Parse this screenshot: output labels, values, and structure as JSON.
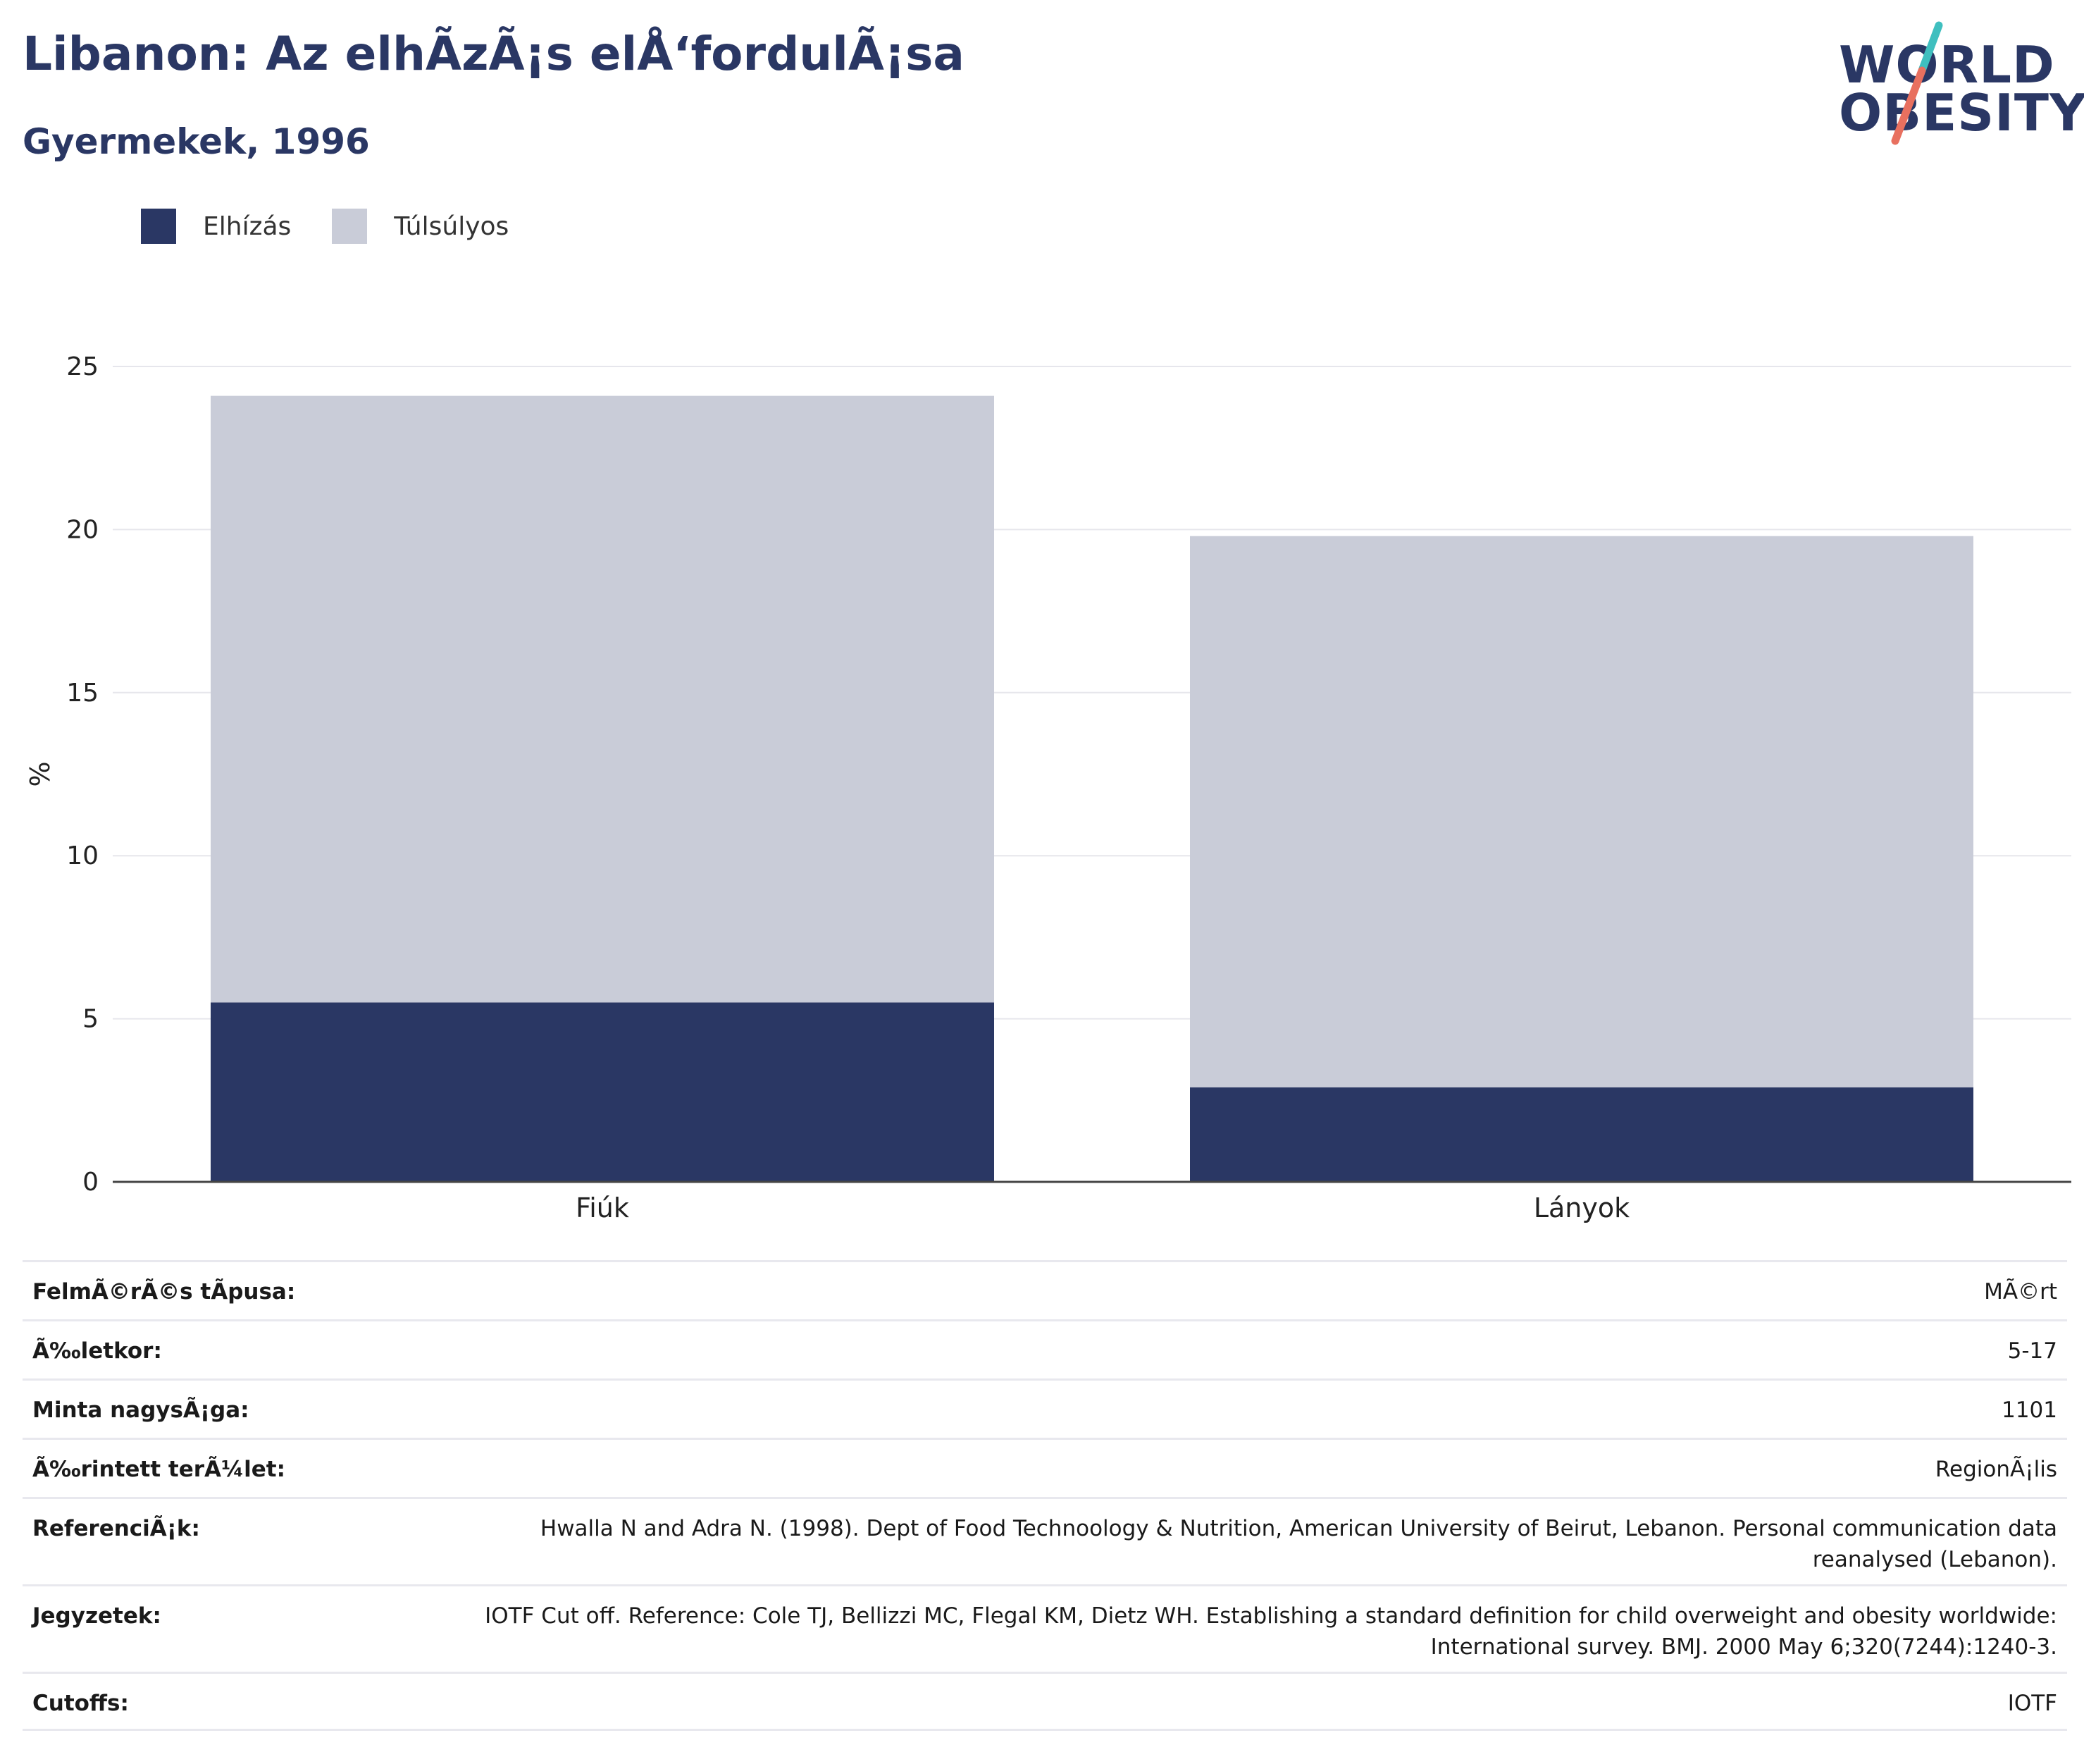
{
  "header": {
    "title": "Libanon: Az elhÃzÃ¡s elÅ‘fordulÃ¡sa",
    "subtitle": "Gyermekek, 1996"
  },
  "logo": {
    "line1": "WORLD",
    "line2": "OBESITY",
    "colors": {
      "text": "#2a3764",
      "slash_top": "#3fbfbf",
      "slash_bottom": "#e8705f"
    }
  },
  "legend": [
    {
      "label": "Elhízás",
      "color": "#2a3764"
    },
    {
      "label": "Túlsúlyos",
      "color": "#c9ccd8"
    }
  ],
  "chart_data": {
    "type": "bar",
    "stacked": true,
    "categories": [
      "Fiúk",
      "Lányok"
    ],
    "series": [
      {
        "name": "Elhízás",
        "values": [
          5.5,
          2.9
        ],
        "color": "#2a3764"
      },
      {
        "name": "Túlsúlyos",
        "values": [
          18.6,
          16.9
        ],
        "color": "#c9ccd8"
      }
    ],
    "ylabel": "%",
    "xlabel": "",
    "ylim": [
      0,
      25
    ],
    "yticks": [
      0,
      5,
      10,
      15,
      20,
      25
    ],
    "grid": true,
    "legend_position": "top-left"
  },
  "details": [
    {
      "label": "FelmÃ©rÃ©s tÃpusa:",
      "value": "MÃ©rt"
    },
    {
      "label": "Ã‰letkor:",
      "value": "5-17"
    },
    {
      "label": "Minta nagysÃ¡ga:",
      "value": "1101"
    },
    {
      "label": "Ã‰rintett terÃ¼let:",
      "value": "RegionÃ¡lis"
    },
    {
      "label": "ReferenciÃ¡k:",
      "value": "Hwalla N and Adra N. (1998). Dept of Food Technoology & Nutrition, American University of Beirut, Lebanon. Personal communication data reanalysed (Lebanon)."
    },
    {
      "label": "Jegyzetek:",
      "value": "IOTF Cut off. Reference: Cole TJ, Bellizzi MC, Flegal KM, Dietz WH. Establishing a standard definition for child overweight and obesity worldwide: International survey. BMJ. 2000 May 6;320(7244):1240-3."
    },
    {
      "label": "Cutoffs:",
      "value": "IOTF"
    }
  ]
}
